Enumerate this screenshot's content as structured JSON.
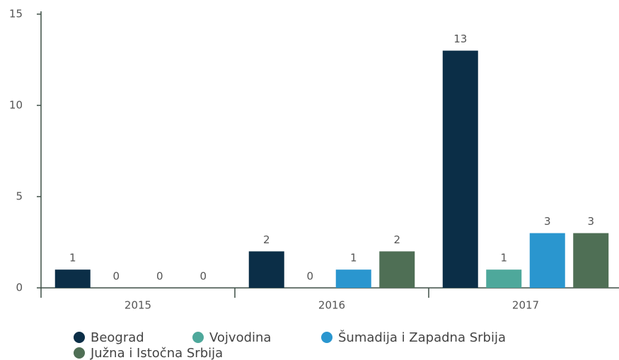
{
  "chart_data": {
    "type": "bar",
    "categories": [
      "2015",
      "2016",
      "2017"
    ],
    "series": [
      {
        "name": "Beograd",
        "color": "#0b2e47",
        "values": [
          1,
          2,
          13
        ]
      },
      {
        "name": "Vojvodina",
        "color": "#4ea89b",
        "values": [
          0,
          0,
          1
        ]
      },
      {
        "name": "Šumadija i Zapadna Srbija",
        "color": "#2a96cf",
        "values": [
          0,
          1,
          3
        ]
      },
      {
        "name": "Južna i Istočna Srbija",
        "color": "#4f6f55",
        "values": [
          0,
          2,
          3
        ]
      }
    ],
    "ylim": [
      0,
      15
    ],
    "yticks": [
      0,
      5,
      10,
      15
    ],
    "grid": false,
    "legend": "bottom"
  }
}
